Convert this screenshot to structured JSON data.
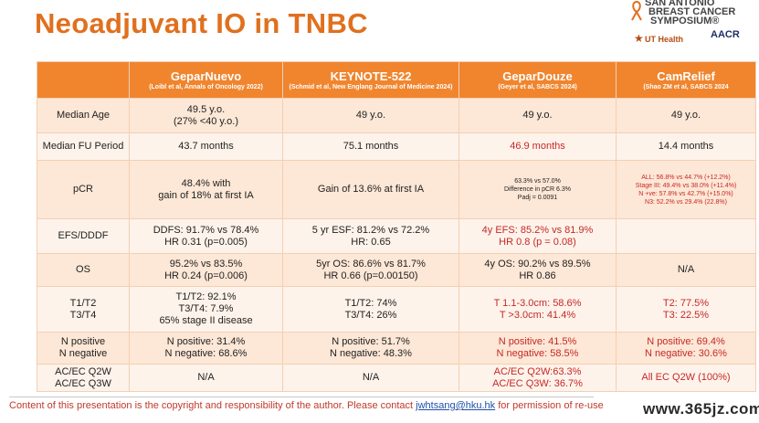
{
  "slide": {
    "title": "Neoadjuvant IO in TNBC"
  },
  "logo": {
    "line1": "SAN ANTONIO",
    "line2": "BREAST CANCER",
    "line3": "SYMPOSIUM®",
    "uthealth": "UT Health",
    "aacr": "AACR"
  },
  "table": {
    "headers": [
      {
        "name": "GeparNuevo",
        "sub": "(Loibl et al, Annals of Oncology 2022)"
      },
      {
        "name": "KEYNOTE-522",
        "sub": "(Schmid et al, New Englang Journal of Medicine 2024)"
      },
      {
        "name": "GeparDouze",
        "sub": "(Geyer et al, SABCS 2024)"
      },
      {
        "name": "CamRelief",
        "sub": "(Shao ZM et al, SABCS 2024"
      }
    ],
    "rows": [
      {
        "label": "Median Age",
        "c1": "49.5 y.o.",
        "c1b": "(27% <40 y.o.)",
        "c2": "49 y.o.",
        "c3": "49 y.o.",
        "c4": "49 y.o."
      },
      {
        "label": "Median FU Period",
        "c1": "43.7 months",
        "c2": "75.1 months",
        "c3": "46.9 months",
        "c4": "14.4 months"
      },
      {
        "label": "pCR",
        "c1": "48.4% with",
        "c1b": "gain of 18% at first IA",
        "c2": "Gain of 13.6% at first IA",
        "c3": "63.3% vs 57.0%",
        "c3b": "Difference in pCR 6.3%",
        "c3c": "Padj = 0.0091",
        "c4": "ALL: 56.8% vs 44.7% (+12.2%)",
        "c4b": "Stage III: 49.4% vs 38.0% (+11.4%)",
        "c4c": "N +ve: 57.8% vs 42.7% (+15.0%)",
        "c4d": "N3: 52.2% vs 29.4% (22.8%)"
      },
      {
        "label": "EFS/DDDF",
        "c1": "DDFS: 91.7% vs 78.4%",
        "c1b": "HR 0.31 (p=0.005)",
        "c2": "5 yr ESF: 81.2% vs 72.2%",
        "c2b": "HR: 0.65",
        "c3": "4y EFS: 85.2% vs 81.9%",
        "c3b": "HR 0.8 (p = 0.08)",
        "c4": ""
      },
      {
        "label": "OS",
        "c1": "95.2% vs 83.5%",
        "c1b": "HR 0.24 (p=0.006)",
        "c2": "5yr OS: 86.6% vs 81.7%",
        "c2b": "HR 0.66 (p=0.00150)",
        "c3": "4y OS: 90.2% vs 89.5%",
        "c3b": "HR 0.86",
        "c4": "N/A"
      },
      {
        "label": "T1/T2",
        "labelb": "T3/T4",
        "c1": "T1/T2: 92.1%",
        "c1b": "T3/T4: 7.9%",
        "c1c": "65% stage II disease",
        "c2": "T1/T2: 74%",
        "c2b": "T3/T4: 26%",
        "c3": "T 1.1-3.0cm: 58.6%",
        "c3b": "T >3.0cm: 41.4%",
        "c4": "T2: 77.5%",
        "c4b": "T3: 22.5%"
      },
      {
        "label": "N positive",
        "labelb": "N negative",
        "c1": "N positive: 31.4%",
        "c1b": "N negative: 68.6%",
        "c2": "N positive: 51.7%",
        "c2b": "N negative: 48.3%",
        "c3": "N positive: 41.5%",
        "c3b": "N negative: 58.5%",
        "c4": "N positive: 69.4%",
        "c4b": "N negative: 30.6%"
      },
      {
        "label": "AC/EC Q2W",
        "labelb": "AC/EC Q3W",
        "c1": "N/A",
        "c2": "N/A",
        "c3": "AC/EC Q2W:63.3%",
        "c3b": "AC/EC Q3W: 36.7%",
        "c4": "All EC Q2W (100%)"
      }
    ]
  },
  "footer": {
    "text_before": "Content of this presentation is the copyright and responsibility of the author. Please contact ",
    "link": "jwhtsang@hku.hk",
    "text_after": " for permission of re-use"
  },
  "watermark": "www.365jz.com",
  "colors": {
    "title": "#e0701e",
    "header_bg": "#f0852e",
    "row_odd": "#fde7d6",
    "row_even": "#fef3ea",
    "highlight": "#c62828"
  }
}
